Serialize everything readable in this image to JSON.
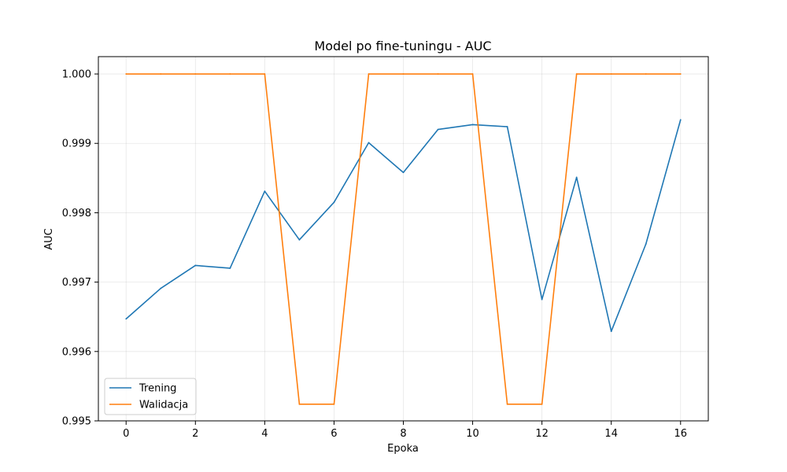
{
  "chart_data": {
    "type": "line",
    "title": "Model po fine-tuningu - AUC",
    "xlabel": "Epoka",
    "ylabel": "AUC",
    "x": [
      0,
      1,
      2,
      3,
      4,
      5,
      6,
      7,
      8,
      9,
      10,
      11,
      12,
      13,
      14,
      15,
      16
    ],
    "xlim": [
      -0.8,
      16.8
    ],
    "ylim": [
      0.995,
      1.00025
    ],
    "xticks": [
      0,
      2,
      4,
      6,
      8,
      10,
      12,
      14,
      16
    ],
    "yticks": [
      0.995,
      0.996,
      0.997,
      0.998,
      0.999,
      1.0
    ],
    "ytick_labels": [
      "0.995",
      "0.996",
      "0.997",
      "0.998",
      "0.999",
      "1.000"
    ],
    "grid": true,
    "legend_position": "lower-left",
    "series": [
      {
        "name": "Trening",
        "color": "#1f77b4",
        "values": [
          0.99647,
          0.99691,
          0.99724,
          0.9972,
          0.99831,
          0.99761,
          0.99815,
          0.99901,
          0.99858,
          0.9992,
          0.99927,
          0.99924,
          0.99675,
          0.99851,
          0.99629,
          0.99755,
          0.99934
        ]
      },
      {
        "name": "Walidacja",
        "color": "#ff7f0e",
        "values": [
          1.0,
          1.0,
          1.0,
          1.0,
          1.0,
          0.99524,
          0.99524,
          1.0,
          1.0,
          1.0,
          1.0,
          0.99524,
          0.99524,
          1.0,
          1.0,
          1.0,
          1.0
        ]
      }
    ]
  }
}
